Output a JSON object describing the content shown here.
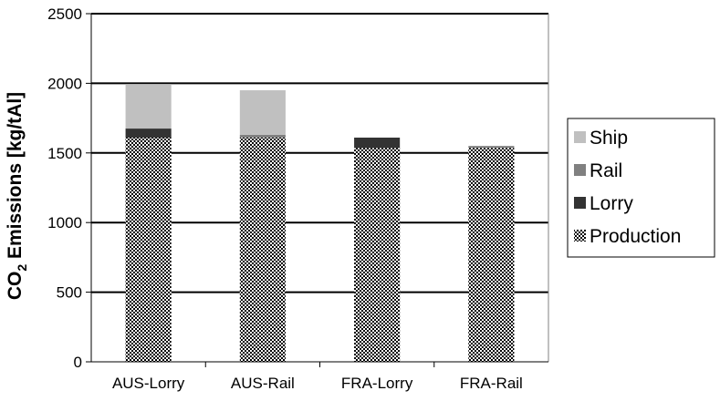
{
  "chart_data": {
    "type": "bar",
    "stacked": true,
    "categories": [
      "AUS-Lorry",
      "AUS-Rail",
      "FRA-Lorry",
      "FRA-Rail"
    ],
    "series": [
      {
        "name": "Production",
        "values": [
          1610,
          1610,
          1535,
          1535
        ],
        "color": "#808080",
        "pattern": "checkerboard"
      },
      {
        "name": "Lorry",
        "values": [
          65,
          0,
          75,
          0
        ],
        "color": "#333333"
      },
      {
        "name": "Rail",
        "values": [
          0,
          20,
          0,
          15
        ],
        "color": "#808080"
      },
      {
        "name": "Ship",
        "values": [
          320,
          320,
          0,
          0
        ],
        "color": "#c0c0c0"
      }
    ],
    "ylabel_main": "CO",
    "ylabel_sub": "2",
    "ylabel_rest": " Emissions [kg/tAl]",
    "ylim": [
      0,
      2500
    ],
    "yticks": [
      "0",
      "500",
      "1000",
      "1500",
      "2000",
      "2500"
    ],
    "grid": true,
    "legend_position": "right",
    "legend_order": [
      "Ship",
      "Rail",
      "Lorry",
      "Production"
    ]
  }
}
